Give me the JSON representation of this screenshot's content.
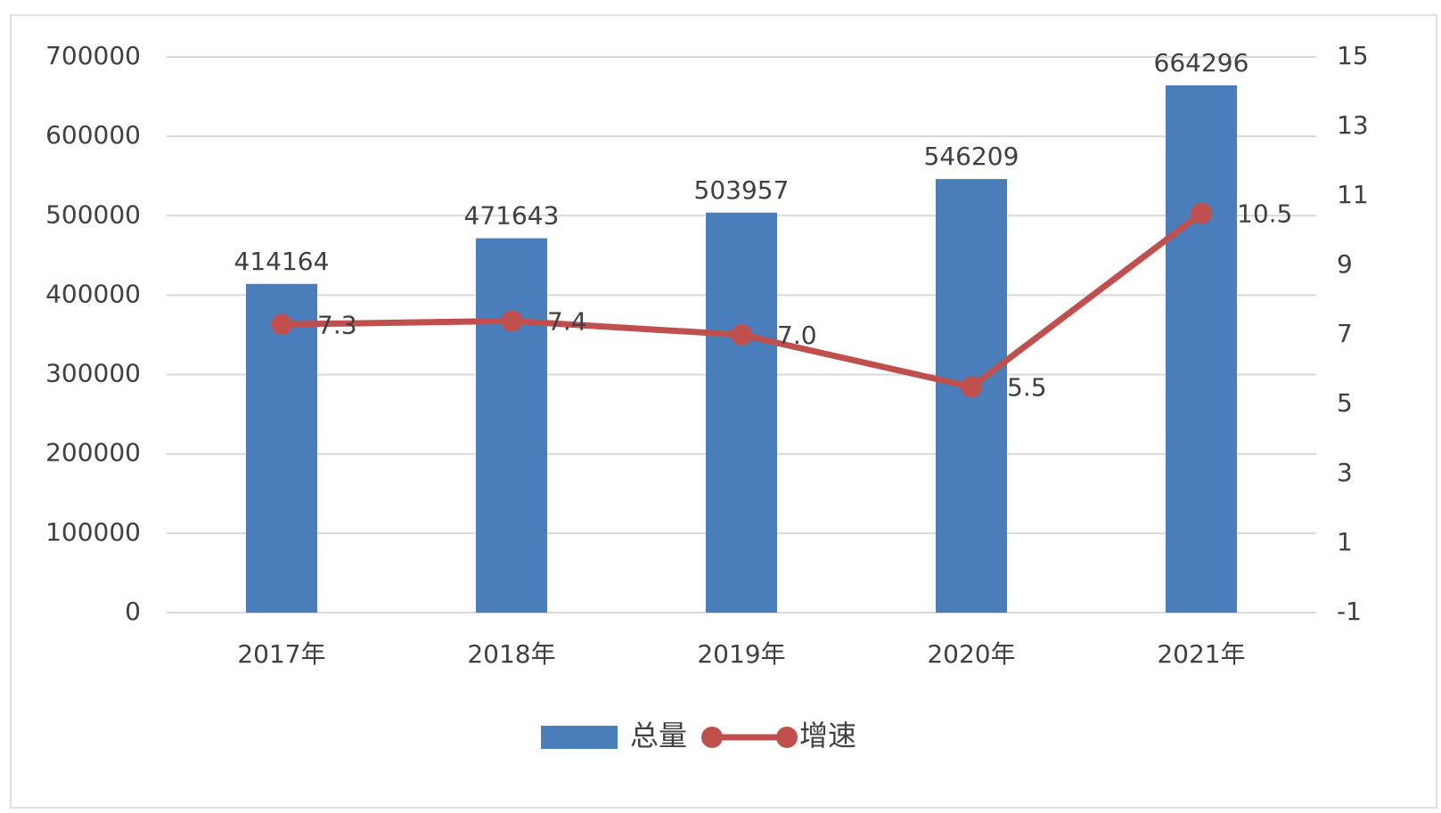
{
  "chart_data": {
    "type": "bar",
    "categories": [
      "2017年",
      "2018年",
      "2019年",
      "2020年",
      "2021年"
    ],
    "series": [
      {
        "name": "总量",
        "color": "#4a7ebb",
        "values": [
          414164,
          471643,
          503957,
          546209,
          664296
        ]
      },
      {
        "name": "增速",
        "color": "#c0504d",
        "type": "line",
        "axis": "y2",
        "values": [
          7.3,
          7.4,
          7.0,
          5.5,
          10.5
        ],
        "value_labels": [
          "7.3",
          "7.4",
          "7.0",
          "5.5",
          "10.5"
        ]
      }
    ],
    "ylim": [
      0,
      700000
    ],
    "yticks": [
      0,
      100000,
      200000,
      300000,
      400000,
      500000,
      600000,
      700000
    ],
    "y2lim": [
      -1,
      15
    ],
    "y2ticks": [
      -1,
      1,
      3,
      5,
      7,
      9,
      11,
      13,
      15
    ],
    "grid": true,
    "legend": "bottom"
  }
}
